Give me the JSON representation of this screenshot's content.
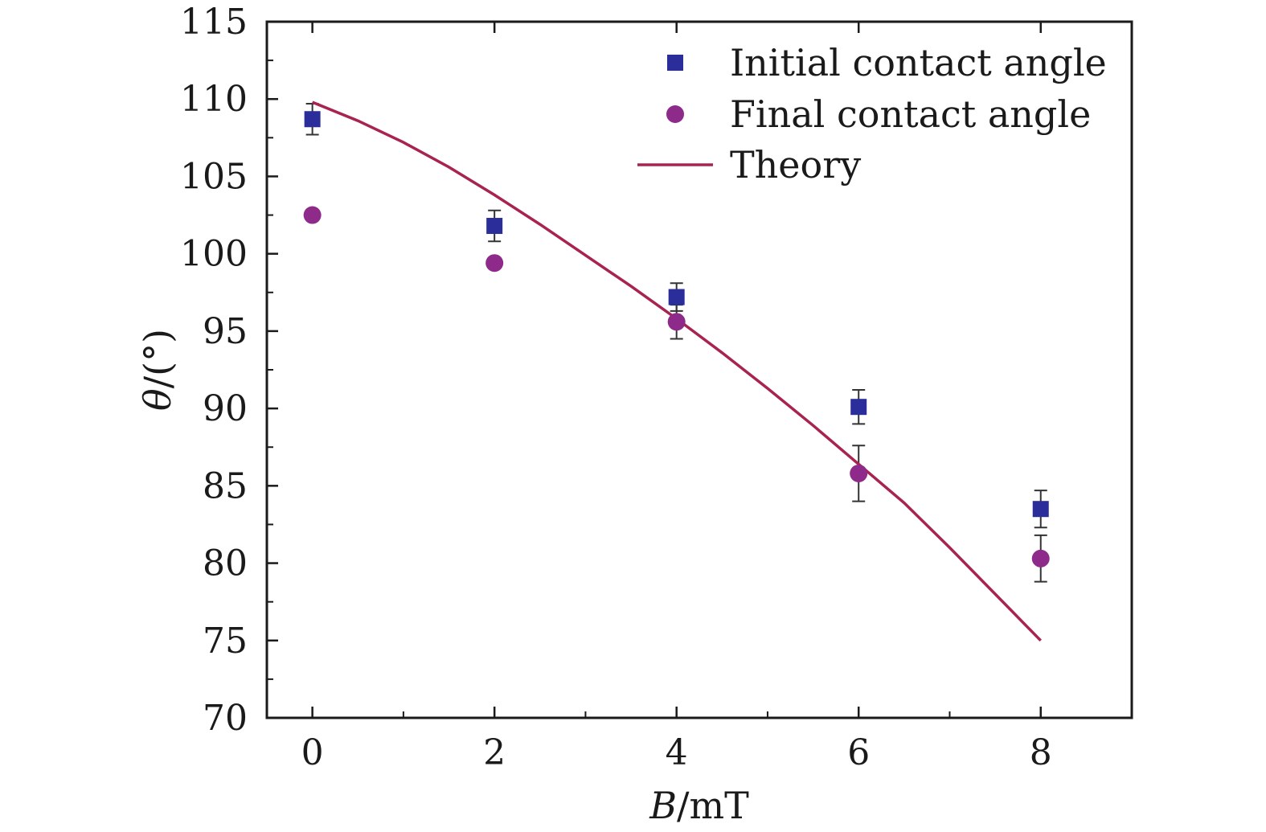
{
  "chart_data": {
    "type": "scatter",
    "xlabel": {
      "var": "B",
      "unit": "/mT"
    },
    "ylabel": {
      "var": "θ",
      "unit": "/(°)"
    },
    "xlim": [
      -0.5,
      9.0
    ],
    "ylim": [
      70,
      115
    ],
    "x_ticks": [
      0,
      2,
      4,
      6,
      8
    ],
    "x_tick_labels": [
      "0",
      "2",
      "4",
      "6",
      "8"
    ],
    "x_minor_ticks": [
      1,
      3,
      5,
      7
    ],
    "y_ticks": [
      70,
      75,
      80,
      85,
      90,
      95,
      100,
      105,
      110,
      115
    ],
    "y_tick_labels": [
      "70",
      "75",
      "80",
      "85",
      "90",
      "95",
      "100",
      "105",
      "110",
      "115"
    ],
    "grid": false,
    "legend_position": "top-right",
    "series": [
      {
        "name": "Initial contact angle",
        "kind": "scatter",
        "marker": "square",
        "color": "#2b2e9a",
        "x": [
          0,
          2,
          4,
          6,
          8
        ],
        "y": [
          108.7,
          101.8,
          97.2,
          90.1,
          83.5
        ],
        "error": [
          1.0,
          1.0,
          0.9,
          1.1,
          1.2
        ]
      },
      {
        "name": "Final contact angle",
        "kind": "scatter",
        "marker": "circle",
        "color": "#8e2a8a",
        "x": [
          0,
          2,
          4,
          6,
          8
        ],
        "y": [
          102.5,
          99.4,
          95.6,
          85.8,
          80.3
        ],
        "error": [
          0.3,
          0.2,
          1.1,
          1.8,
          1.5
        ]
      },
      {
        "name": "Theory",
        "kind": "line",
        "color": "#a8234f",
        "x": [
          0,
          0.5,
          1,
          1.5,
          2,
          2.5,
          3,
          3.5,
          4,
          4.5,
          5,
          5.5,
          6,
          6.5,
          7,
          7.5,
          8
        ],
        "y": [
          109.8,
          108.6,
          107.2,
          105.6,
          103.8,
          101.9,
          99.9,
          97.9,
          95.8,
          93.6,
          91.3,
          88.9,
          86.4,
          83.9,
          81.0,
          78.0,
          75.0
        ]
      }
    ]
  }
}
